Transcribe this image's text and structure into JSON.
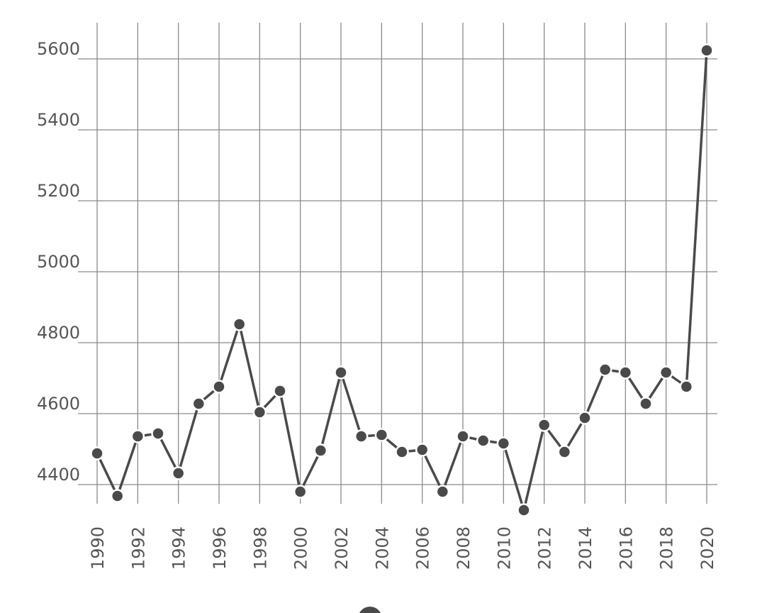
{
  "chart_data": {
    "type": "line",
    "x": [
      "1990",
      "1991",
      "1992",
      "1993",
      "1994",
      "1995",
      "1996",
      "1997",
      "1998",
      "1999",
      "2000",
      "2001",
      "2002",
      "2003",
      "2004",
      "2005",
      "2006",
      "2007",
      "2008",
      "2009",
      "2010",
      "2011",
      "2012",
      "2013",
      "2014",
      "2015",
      "2016",
      "2017",
      "2018",
      "2019",
      "2020"
    ],
    "x_tick_labels": [
      "1990",
      "1992",
      "1994",
      "1996",
      "1998",
      "2000",
      "2002",
      "2004",
      "2006",
      "2008",
      "2010",
      "2012",
      "2014",
      "2016",
      "2018",
      "2020"
    ],
    "series": [
      {
        "values": [
          4488,
          4368,
          4536,
          4544,
          4432,
          4628,
          4676,
          4852,
          4604,
          4664,
          4380,
          4496,
          4716,
          4536,
          4540,
          4492,
          4498,
          4380,
          4536,
          4524,
          4516,
          4328,
          4568,
          4492,
          4588,
          4724,
          4716,
          4628,
          4716,
          4676,
          5624
        ]
      }
    ],
    "y_ticks": [
      4400,
      4600,
      4800,
      5000,
      5200,
      5400,
      5600
    ],
    "ylim": [
      4300,
      5700
    ],
    "grid": true,
    "legend": "bottom-center",
    "title": "",
    "xlabel": "",
    "ylabel": "",
    "colors": {
      "line": "#4a4a4a",
      "grid": "#8a8a8a",
      "text": "#555555"
    }
  }
}
